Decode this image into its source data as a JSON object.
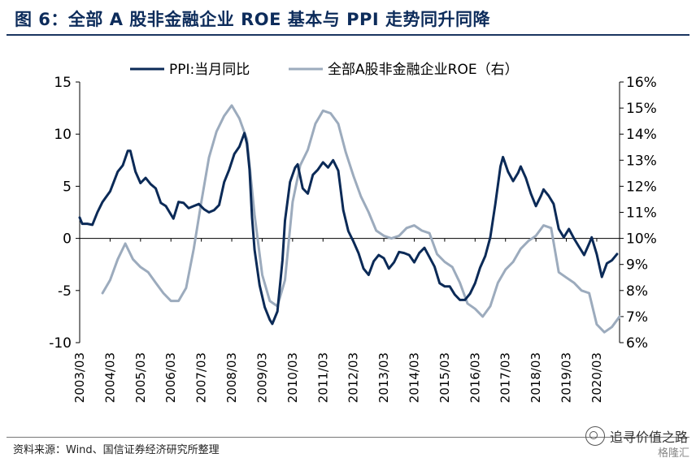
{
  "title": "图 6：全部 A 股非金融企业 ROE 基本与 PPI 走势同升同降",
  "source": "资料来源：Wind、国信证券经济研究所整理",
  "watermark": "追寻价值之路",
  "watermark_logo": "格隆汇",
  "colors": {
    "title": "#0d2c5b",
    "ppi": "#0b2a57",
    "roe": "#9cabbd"
  },
  "chart_data": {
    "type": "line",
    "title": "",
    "xlabel": "",
    "ylabel_left": "",
    "ylabel_right": "",
    "legend_position": "top",
    "legend": [
      "PPI:当月同比",
      "全部A股非金融企业ROE（右）"
    ],
    "grid": false,
    "left_axis": {
      "ylim": [
        -10,
        15
      ],
      "ticks": [
        "15",
        "10",
        "5",
        "0",
        "-5",
        "-10"
      ]
    },
    "right_axis": {
      "ylim": [
        6,
        16
      ],
      "ticks": [
        "16%",
        "15%",
        "14%",
        "13%",
        "12%",
        "11%",
        "10%",
        "9%",
        "8%",
        "7%",
        "6%"
      ]
    },
    "x_range": [
      "2003-03",
      "2020-12"
    ],
    "x_tick_labels": [
      "2003/03",
      "2004/03",
      "2005/03",
      "2006/03",
      "2007/03",
      "2008/03",
      "2009/03",
      "2010/03",
      "2011/03",
      "2012/03",
      "2013/03",
      "2014/03",
      "2015/03",
      "2016/03",
      "2017/03",
      "2018/03",
      "2019/03",
      "2020/03"
    ],
    "series": [
      {
        "name": "PPI:当月同比",
        "axis": "left",
        "color": "#0b2a57",
        "points": [
          [
            "2003-03",
            2.0
          ],
          [
            "2003-04",
            1.4
          ],
          [
            "2003-06",
            1.4
          ],
          [
            "2003-08",
            1.3
          ],
          [
            "2003-10",
            2.5
          ],
          [
            "2003-12",
            3.5
          ],
          [
            "2004-03",
            4.5
          ],
          [
            "2004-06",
            6.4
          ],
          [
            "2004-08",
            7.0
          ],
          [
            "2004-10",
            8.4
          ],
          [
            "2004-11",
            8.4
          ],
          [
            "2005-01",
            6.4
          ],
          [
            "2005-03",
            5.3
          ],
          [
            "2005-05",
            5.8
          ],
          [
            "2005-07",
            5.2
          ],
          [
            "2005-09",
            4.8
          ],
          [
            "2005-11",
            3.4
          ],
          [
            "2006-01",
            3.1
          ],
          [
            "2006-03",
            2.3
          ],
          [
            "2006-04",
            1.9
          ],
          [
            "2006-05",
            2.7
          ],
          [
            "2006-06",
            3.5
          ],
          [
            "2006-08",
            3.4
          ],
          [
            "2006-10",
            2.9
          ],
          [
            "2006-12",
            3.1
          ],
          [
            "2007-02",
            3.3
          ],
          [
            "2007-04",
            2.8
          ],
          [
            "2007-06",
            2.5
          ],
          [
            "2007-08",
            2.7
          ],
          [
            "2007-10",
            3.2
          ],
          [
            "2007-12",
            5.4
          ],
          [
            "2008-02",
            6.6
          ],
          [
            "2008-04",
            8.1
          ],
          [
            "2008-06",
            8.8
          ],
          [
            "2008-08",
            10.1
          ],
          [
            "2008-09",
            9.1
          ],
          [
            "2008-10",
            6.6
          ],
          [
            "2008-11",
            2.0
          ],
          [
            "2008-12",
            -1.1
          ],
          [
            "2009-02",
            -4.5
          ],
          [
            "2009-04",
            -6.6
          ],
          [
            "2009-06",
            -7.8
          ],
          [
            "2009-07",
            -8.2
          ],
          [
            "2009-09",
            -7.0
          ],
          [
            "2009-11",
            -2.1
          ],
          [
            "2009-12",
            1.7
          ],
          [
            "2010-02",
            5.4
          ],
          [
            "2010-04",
            6.8
          ],
          [
            "2010-05",
            7.1
          ],
          [
            "2010-07",
            4.8
          ],
          [
            "2010-09",
            4.3
          ],
          [
            "2010-11",
            6.1
          ],
          [
            "2011-01",
            6.6
          ],
          [
            "2011-03",
            7.3
          ],
          [
            "2011-05",
            6.8
          ],
          [
            "2011-07",
            7.5
          ],
          [
            "2011-09",
            6.5
          ],
          [
            "2011-11",
            2.7
          ],
          [
            "2012-01",
            0.7
          ],
          [
            "2012-03",
            -0.3
          ],
          [
            "2012-05",
            -1.4
          ],
          [
            "2012-07",
            -2.9
          ],
          [
            "2012-09",
            -3.5
          ],
          [
            "2012-11",
            -2.2
          ],
          [
            "2013-01",
            -1.6
          ],
          [
            "2013-03",
            -1.9
          ],
          [
            "2013-05",
            -2.9
          ],
          [
            "2013-07",
            -2.3
          ],
          [
            "2013-09",
            -1.3
          ],
          [
            "2013-11",
            -1.4
          ],
          [
            "2014-01",
            -1.6
          ],
          [
            "2014-03",
            -2.3
          ],
          [
            "2014-05",
            -1.4
          ],
          [
            "2014-07",
            -0.9
          ],
          [
            "2014-09",
            -1.8
          ],
          [
            "2014-11",
            -2.7
          ],
          [
            "2015-01",
            -4.3
          ],
          [
            "2015-03",
            -4.6
          ],
          [
            "2015-05",
            -4.6
          ],
          [
            "2015-07",
            -5.4
          ],
          [
            "2015-09",
            -5.9
          ],
          [
            "2015-11",
            -5.9
          ],
          [
            "2016-01",
            -5.3
          ],
          [
            "2016-03",
            -4.3
          ],
          [
            "2016-05",
            -2.8
          ],
          [
            "2016-07",
            -1.7
          ],
          [
            "2016-09",
            0.1
          ],
          [
            "2016-11",
            3.3
          ],
          [
            "2017-01",
            6.9
          ],
          [
            "2017-02",
            7.8
          ],
          [
            "2017-04",
            6.4
          ],
          [
            "2017-06",
            5.5
          ],
          [
            "2017-08",
            6.3
          ],
          [
            "2017-09",
            6.9
          ],
          [
            "2017-11",
            5.8
          ],
          [
            "2018-01",
            4.3
          ],
          [
            "2018-03",
            3.1
          ],
          [
            "2018-05",
            4.1
          ],
          [
            "2018-06",
            4.7
          ],
          [
            "2018-08",
            4.1
          ],
          [
            "2018-10",
            3.3
          ],
          [
            "2018-12",
            0.9
          ],
          [
            "2019-02",
            0.1
          ],
          [
            "2019-04",
            0.9
          ],
          [
            "2019-06",
            0.0
          ],
          [
            "2019-08",
            -0.8
          ],
          [
            "2019-10",
            -1.6
          ],
          [
            "2019-12",
            -0.5
          ],
          [
            "2020-01",
            0.1
          ],
          [
            "2020-03",
            -1.5
          ],
          [
            "2020-05",
            -3.7
          ],
          [
            "2020-07",
            -2.4
          ],
          [
            "2020-09",
            -2.1
          ],
          [
            "2020-11",
            -1.5
          ]
        ]
      },
      {
        "name": "全部A股非金融企业ROE（右）",
        "axis": "right",
        "color": "#9cabbd",
        "points": [
          [
            "2003-12",
            7.9
          ],
          [
            "2004-03",
            8.4
          ],
          [
            "2004-06",
            9.2
          ],
          [
            "2004-09",
            9.8
          ],
          [
            "2004-12",
            9.2
          ],
          [
            "2005-03",
            8.9
          ],
          [
            "2005-06",
            8.7
          ],
          [
            "2005-09",
            8.3
          ],
          [
            "2005-12",
            7.9
          ],
          [
            "2006-03",
            7.6
          ],
          [
            "2006-06",
            7.6
          ],
          [
            "2006-09",
            8.1
          ],
          [
            "2006-12",
            9.6
          ],
          [
            "2007-03",
            11.4
          ],
          [
            "2007-06",
            13.1
          ],
          [
            "2007-09",
            14.1
          ],
          [
            "2007-12",
            14.7
          ],
          [
            "2008-03",
            15.1
          ],
          [
            "2008-06",
            14.6
          ],
          [
            "2008-09",
            13.8
          ],
          [
            "2008-12",
            10.9
          ],
          [
            "2009-03",
            8.6
          ],
          [
            "2009-06",
            7.6
          ],
          [
            "2009-09",
            7.4
          ],
          [
            "2009-12",
            8.4
          ],
          [
            "2010-03",
            11.4
          ],
          [
            "2010-06",
            12.8
          ],
          [
            "2010-09",
            13.4
          ],
          [
            "2010-12",
            14.4
          ],
          [
            "2011-03",
            14.9
          ],
          [
            "2011-06",
            14.8
          ],
          [
            "2011-09",
            14.4
          ],
          [
            "2011-12",
            13.3
          ],
          [
            "2012-03",
            12.4
          ],
          [
            "2012-06",
            11.6
          ],
          [
            "2012-09",
            11.0
          ],
          [
            "2012-12",
            10.3
          ],
          [
            "2013-03",
            10.1
          ],
          [
            "2013-06",
            10.0
          ],
          [
            "2013-09",
            10.1
          ],
          [
            "2013-12",
            10.4
          ],
          [
            "2014-03",
            10.5
          ],
          [
            "2014-06",
            10.3
          ],
          [
            "2014-09",
            10.2
          ],
          [
            "2014-12",
            9.4
          ],
          [
            "2015-03",
            9.1
          ],
          [
            "2015-06",
            8.9
          ],
          [
            "2015-09",
            8.3
          ],
          [
            "2015-12",
            7.5
          ],
          [
            "2016-03",
            7.3
          ],
          [
            "2016-06",
            7.0
          ],
          [
            "2016-09",
            7.4
          ],
          [
            "2016-12",
            8.3
          ],
          [
            "2017-03",
            8.8
          ],
          [
            "2017-06",
            9.1
          ],
          [
            "2017-09",
            9.6
          ],
          [
            "2017-12",
            9.9
          ],
          [
            "2018-03",
            10.1
          ],
          [
            "2018-06",
            10.5
          ],
          [
            "2018-09",
            10.4
          ],
          [
            "2018-12",
            8.7
          ],
          [
            "2019-03",
            8.5
          ],
          [
            "2019-06",
            8.3
          ],
          [
            "2019-09",
            8.0
          ],
          [
            "2019-12",
            7.9
          ],
          [
            "2020-03",
            6.7
          ],
          [
            "2020-06",
            6.4
          ],
          [
            "2020-09",
            6.6
          ],
          [
            "2020-12",
            7.0
          ]
        ]
      }
    ]
  }
}
